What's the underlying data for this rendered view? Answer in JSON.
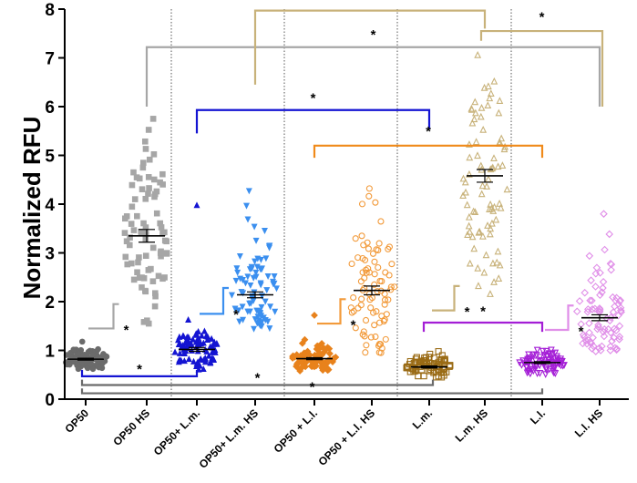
{
  "chart_data": {
    "type": "scatter",
    "title": "",
    "xlabel": "",
    "ylabel": "Normalized RFU",
    "ylim": [
      0,
      8
    ],
    "yticks": [
      "0",
      "1",
      "2",
      "3",
      "4",
      "5",
      "6",
      "7",
      "8"
    ],
    "categories": [
      "OP50",
      "OP50 HS",
      "OP50+ L.m.",
      "OP50+ L.m. HS",
      "OP50 + L.l.",
      "OP50 + L.l. HS",
      "L.m.",
      "L.m. HS",
      "L.l.",
      "L.l. HS"
    ],
    "series": [
      {
        "name": "OP50",
        "marker": "circle-filled",
        "color": "#6b6b6b",
        "mean": 0.82,
        "sem": 0.02,
        "min": 0.62,
        "max": 1.18
      },
      {
        "name": "OP50 HS",
        "marker": "square-filled",
        "color": "#a6a6a6",
        "mean": 3.35,
        "sem": 0.13,
        "min": 1.55,
        "max": 5.75
      },
      {
        "name": "OP50+ L.m.",
        "marker": "triangle-up-filled",
        "color": "#1414d2",
        "mean": 1.02,
        "sem": 0.04,
        "min": 0.6,
        "max": 1.62,
        "outlier": 3.97
      },
      {
        "name": "OP50+ L.m. HS",
        "marker": "triangle-down-filled",
        "color": "#3b8fef",
        "mean": 2.14,
        "sem": 0.06,
        "min": 1.45,
        "max": 4.28
      },
      {
        "name": "OP50 + L.l.",
        "marker": "diamond-filled",
        "color": "#e8821c",
        "mean": 0.83,
        "sem": 0.02,
        "min": 0.58,
        "max": 1.22,
        "outlier": 1.72
      },
      {
        "name": "OP50 + L.l. HS",
        "marker": "circle-open",
        "color": "#f29a3a",
        "mean": 2.23,
        "sem": 0.09,
        "min": 0.95,
        "max": 4.32
      },
      {
        "name": "L.m.",
        "marker": "square-open",
        "color": "#9a6b15",
        "mean": 0.66,
        "sem": 0.02,
        "min": 0.45,
        "max": 0.98
      },
      {
        "name": "L.m. HS",
        "marker": "triangle-up-open",
        "color": "#c8b27a",
        "mean": 4.58,
        "sem": 0.13,
        "min": 2.15,
        "max": 7.05
      },
      {
        "name": "L.l.",
        "marker": "triangle-down-open",
        "color": "#a41ed6",
        "mean": 0.75,
        "sem": 0.02,
        "min": 0.52,
        "max": 1.02
      },
      {
        "name": "L.l. HS",
        "marker": "diamond-open",
        "color": "#e08ee8",
        "mean": 1.67,
        "sem": 0.06,
        "min": 0.98,
        "max": 3.8
      }
    ],
    "significance_brackets": [
      {
        "from": "OP50",
        "to": "OP50 HS",
        "label": "*",
        "color": "#a6a6a6"
      },
      {
        "from": "OP50+ L.m.",
        "to": "OP50+ L.m. HS",
        "label": "*",
        "color": "#3b8fef"
      },
      {
        "from": "OP50 + L.l.",
        "to": "OP50 + L.l. HS",
        "label": "*",
        "color": "#f29a3a"
      },
      {
        "from": "L.m.",
        "to": "L.m. HS",
        "label": "*",
        "color": "#c8b27a"
      },
      {
        "from": "L.l.",
        "to": "L.l. HS",
        "label": "*",
        "color": "#e08ee8"
      },
      {
        "from": "OP50 HS",
        "to": "L.l. HS",
        "label": "*",
        "color": "#a6a6a6"
      },
      {
        "from": "OP50+ L.m. HS",
        "to": "L.m. HS",
        "label": "*",
        "color": "#c8b27a"
      },
      {
        "from": "L.m. HS",
        "to": "L.l. HS",
        "label": "*",
        "color": "#c8b27a"
      },
      {
        "from": "OP50+ L.m.",
        "to": "L.m.",
        "label": "*",
        "color": "#1414d2"
      },
      {
        "from": "OP50 + L.l.",
        "to": "L.l.",
        "label": "*",
        "color": "#f08a1a"
      },
      {
        "from": "L.m.",
        "to": "L.l.",
        "label": "*",
        "color": "#a41ed6"
      },
      {
        "from": "OP50",
        "to": "OP50+ L.m.",
        "label": "*",
        "color": "#1414d2"
      },
      {
        "from": "OP50",
        "to": "L.m.",
        "label": "*",
        "color": "#6b6b6b"
      },
      {
        "from": "OP50",
        "to": "L.l.",
        "label": "*",
        "color": "#6b6b6b"
      }
    ]
  }
}
